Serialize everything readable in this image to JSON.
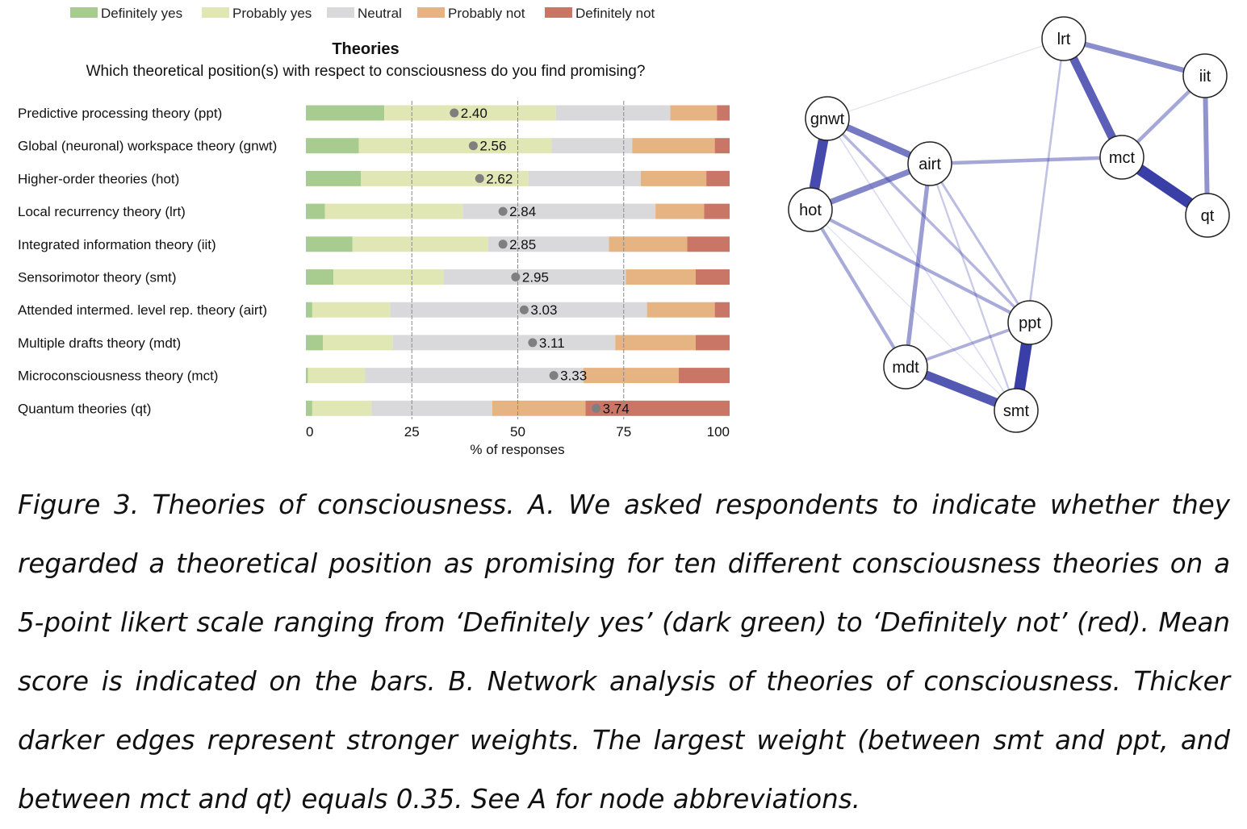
{
  "colors": {
    "definitely_yes": "#a8cc90",
    "probably_yes": "#e0e6b4",
    "neutral": "#d9d9db",
    "probably_not": "#e6b382",
    "definitely_not": "#c97667",
    "edge": "#3a3fa8",
    "mean_dot": "#7f7f7f"
  },
  "chart_data": [
    {
      "type": "bar",
      "stacked": "horizontal-100%",
      "title": "Theories",
      "subtitle": "Which theoretical position(s) with respect to consciousness do you find promising?",
      "xlabel": "% of responses",
      "xlim": [
        0,
        100
      ],
      "xticks": [
        "0",
        "25",
        "50",
        "75",
        "100"
      ],
      "legend": [
        "Definitely yes",
        "Probably yes",
        "Neutral",
        "Probably not",
        "Definitely not"
      ],
      "legend_position": "top",
      "grid": "vertical dashed at 25, 50, 75",
      "categories": [
        "Predictive processing theory (ppt)",
        "Global (neuronal) workspace theory (gnwt)",
        "Higher-order theories (hot)",
        "Local recurrency theory (lrt)",
        "Integrated information theory (iit)",
        "Sensorimotor theory (smt)",
        "Attended intermed. level rep. theory (airt)",
        "Multiple drafts theory (mdt)",
        "Microconsciousness theory (mct)",
        "Quantum theories (qt)"
      ],
      "series": [
        {
          "name": "Definitely yes",
          "values": [
            18.5,
            12.5,
            13,
            4.5,
            11,
            6.5,
            1.5,
            4,
            0.5,
            1.5
          ]
        },
        {
          "name": "Probably yes",
          "values": [
            40.5,
            45.5,
            39.5,
            32.5,
            32,
            26,
            18.5,
            16.5,
            13.5,
            14
          ]
        },
        {
          "name": "Neutral",
          "values": [
            27,
            19,
            26.5,
            45.5,
            28.5,
            43,
            60.5,
            52.5,
            51.5,
            28.5
          ]
        },
        {
          "name": "Probably not",
          "values": [
            11,
            19.5,
            15.5,
            11.5,
            18.5,
            16.5,
            16,
            19,
            22.5,
            22
          ]
        },
        {
          "name": "Definitely not",
          "values": [
            3,
            3.5,
            5.5,
            6,
            10,
            8,
            3.5,
            8,
            12,
            34
          ]
        }
      ],
      "means": [
        "2.40",
        "2.56",
        "2.62",
        "2.84",
        "2.85",
        "2.95",
        "3.03",
        "3.11",
        "3.33",
        "3.74"
      ],
      "mean_positions_pct": [
        35,
        39.5,
        41,
        46.5,
        46.5,
        49.5,
        51.5,
        53.5,
        58.5,
        68.5
      ]
    },
    {
      "type": "network",
      "nodes": [
        "lrt",
        "iit",
        "gnwt",
        "airt",
        "mct",
        "hot",
        "qt",
        "ppt",
        "mdt",
        "smt"
      ],
      "edges": [
        {
          "source": "smt",
          "target": "ppt",
          "weight": 0.35
        },
        {
          "source": "mct",
          "target": "qt",
          "weight": 0.35
        },
        {
          "source": "gnwt",
          "target": "hot",
          "weight": 0.32
        },
        {
          "source": "mdt",
          "target": "smt",
          "weight": 0.28
        },
        {
          "source": "lrt",
          "target": "mct",
          "weight": 0.26
        },
        {
          "source": "gnwt",
          "target": "airt",
          "weight": 0.2
        },
        {
          "source": "hot",
          "target": "airt",
          "weight": 0.17
        },
        {
          "source": "lrt",
          "target": "iit",
          "weight": 0.15
        },
        {
          "source": "iit",
          "target": "qt",
          "weight": 0.14
        },
        {
          "source": "airt",
          "target": "mdt",
          "weight": 0.12
        },
        {
          "source": "airt",
          "target": "mct",
          "weight": 0.1
        },
        {
          "source": "iit",
          "target": "mct",
          "weight": 0.1
        },
        {
          "source": "hot",
          "target": "ppt",
          "weight": 0.09
        },
        {
          "source": "hot",
          "target": "mdt",
          "weight": 0.09
        },
        {
          "source": "ppt",
          "target": "mdt",
          "weight": 0.08
        },
        {
          "source": "gnwt",
          "target": "ppt",
          "weight": 0.07
        },
        {
          "source": "airt",
          "target": "ppt",
          "weight": 0.06
        },
        {
          "source": "lrt",
          "target": "smt",
          "weight": 0.05
        },
        {
          "source": "airt",
          "target": "smt",
          "weight": 0.04
        },
        {
          "source": "gnwt",
          "target": "smt",
          "weight": 0.02
        },
        {
          "source": "lrt",
          "target": "gnwt",
          "weight": 0.01
        },
        {
          "source": "hot",
          "target": "smt",
          "weight": 0.01
        }
      ]
    }
  ],
  "caption": "Figure 3. Theories of consciousness. A. We asked respondents to indicate whether they regarded a theoretical position as promising for ten different consciousness theories on a 5-point likert scale ranging from ‘Definitely yes’ (dark green) to ‘Definitely not’ (red). Mean score is indicated on the bars. B. Network analysis of theories of consciousness. Thicker darker edges represent stronger weights. The largest weight (between smt and ppt, and between mct and qt) equals 0.35. See A for node abbreviations."
}
